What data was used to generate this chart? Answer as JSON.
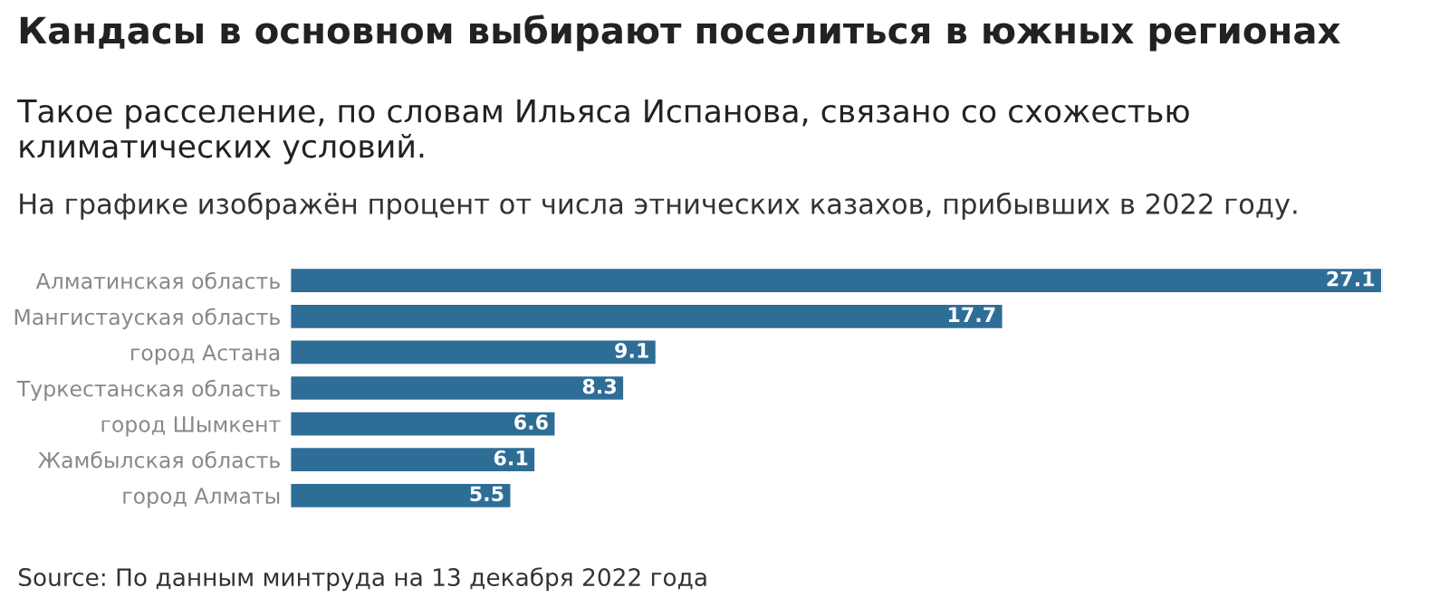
{
  "chart_data": {
    "type": "bar",
    "orientation": "horizontal",
    "title": "Кандасы в основном выбирают поселиться в южных регионах",
    "subtitle": "Такое расселение, по словам Ильяса Испанова, связано со схожестью климатических условий.",
    "annotations": [
      "На графике изображён процент от числа этнических казахов, прибывших в 2022 году.",
      "Source: По данным минтруда на 13 декабря 2022 года"
    ],
    "categories": [
      "Алматинская область",
      "Мангистауская область",
      "город Астана",
      "Туркестанская область",
      "город Шымкент",
      "Жамбылская область",
      "город Алматы"
    ],
    "values": [
      27.1,
      17.7,
      9.1,
      8.3,
      6.6,
      6.1,
      5.5
    ],
    "color": "#2e6d96",
    "data_labels": true,
    "tick_labels": "y",
    "grid": false
  }
}
